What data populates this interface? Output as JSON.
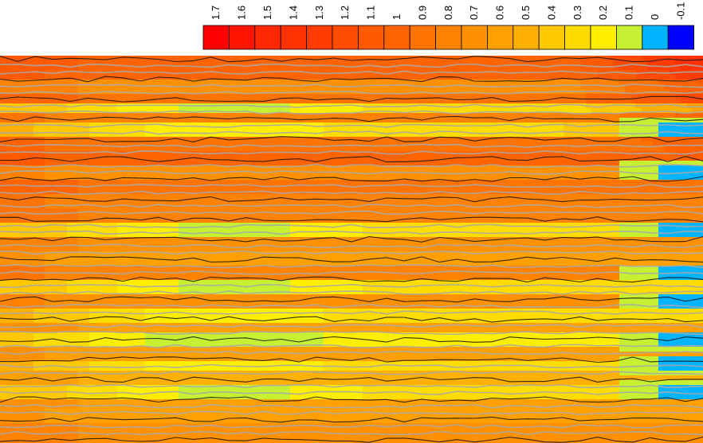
{
  "chart_data": {
    "type": "heatmap",
    "title": "",
    "xlabel": "",
    "ylabel": "",
    "grid": false,
    "legend_position": "top-right",
    "colorbar": {
      "levels": [
        1.7,
        1.6,
        1.5,
        1.4,
        1.3,
        1.2,
        1.1,
        1,
        0.9,
        0.8,
        0.7,
        0.6,
        0.5,
        0.4,
        0.3,
        0.2,
        0.1,
        0,
        -0.1
      ],
      "tick_labels": [
        "1.7",
        "1.6",
        "1.5",
        "1.4",
        "1.3",
        "1.2",
        "1.1",
        "1",
        "0.9",
        "0.8",
        "0.7",
        "0.6",
        "0.5",
        "0.4",
        "0.3",
        "0.2",
        "0.1",
        "0",
        "-0.1"
      ],
      "colors": [
        "#ff0000",
        "#ff1400",
        "#ff2800",
        "#ff3200",
        "#ff3c00",
        "#ff4b00",
        "#ff5a00",
        "#ff6400",
        "#ff7300",
        "#ff8200",
        "#ff9100",
        "#ffa000",
        "#ffb000",
        "#ffc800",
        "#ffdc00",
        "#ffee00",
        "#c8f032",
        "#00b4ff",
        "#0000ff"
      ]
    },
    "field": {
      "bands": [
        {
          "y": 0.02,
          "value": 1.0
        },
        {
          "y": 0.05,
          "value": 0.95
        },
        {
          "y": 0.08,
          "value": 0.7
        },
        {
          "y": 0.11,
          "value": 0.9
        },
        {
          "y": 0.135,
          "value": 0.3
        },
        {
          "y": 0.16,
          "value": 0.75
        },
        {
          "y": 0.19,
          "value": 0.35
        },
        {
          "y": 0.225,
          "value": 0.85
        },
        {
          "y": 0.26,
          "value": 0.95
        },
        {
          "y": 0.3,
          "value": 0.65
        },
        {
          "y": 0.34,
          "value": 0.9
        },
        {
          "y": 0.38,
          "value": 0.75
        },
        {
          "y": 0.415,
          "value": 0.8
        },
        {
          "y": 0.45,
          "value": 0.3
        },
        {
          "y": 0.49,
          "value": 0.7
        },
        {
          "y": 0.52,
          "value": 0.55
        },
        {
          "y": 0.56,
          "value": 0.75
        },
        {
          "y": 0.6,
          "value": 0.3
        },
        {
          "y": 0.635,
          "value": 0.65
        },
        {
          "y": 0.67,
          "value": 0.35
        },
        {
          "y": 0.7,
          "value": 0.6
        },
        {
          "y": 0.735,
          "value": 0.25
        },
        {
          "y": 0.77,
          "value": 0.55
        },
        {
          "y": 0.8,
          "value": 0.35
        },
        {
          "y": 0.835,
          "value": 0.5
        },
        {
          "y": 0.865,
          "value": 0.3
        },
        {
          "y": 0.9,
          "value": 0.6
        },
        {
          "y": 0.935,
          "value": 0.55
        },
        {
          "y": 0.97,
          "value": 0.7
        }
      ],
      "center_dip": 0.35,
      "right_edge_low_rows": [
        0.19,
        0.3,
        0.45,
        0.56,
        0.635,
        0.735,
        0.8,
        0.865
      ]
    }
  }
}
